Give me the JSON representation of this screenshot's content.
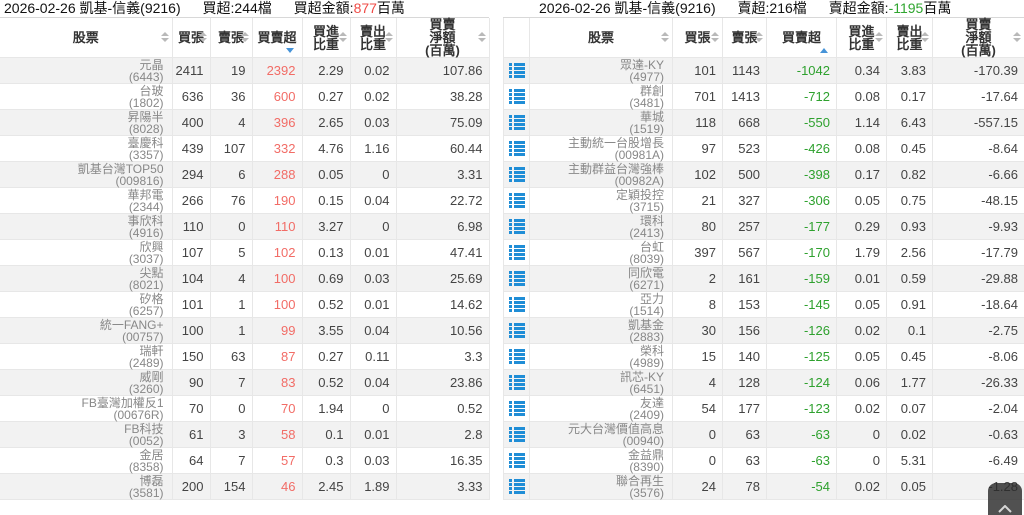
{
  "colors": {
    "positive-red": "#f26c66",
    "negative-green": "#2ea12e",
    "title-red": "#ef4b46",
    "title-green": "#2fa52f",
    "icon-blue": "#1f8dd6",
    "sort-blue": "#4693d8"
  },
  "tables": [
    {
      "kind": "buy-super",
      "has_icon_column": false,
      "title": {
        "date_broker": "2026-02-26 凱基-信義(9216)",
        "count": "買超:244檔",
        "amount_prefix": "買超金額:",
        "amount_value": "877",
        "amount_suffix": "百萬",
        "amount_color": "red"
      },
      "columns": [
        {
          "label": "股票",
          "sort": "none"
        },
        {
          "label": "買張",
          "sort": "none"
        },
        {
          "label": "賣張",
          "sort": "none"
        },
        {
          "label": "買賣超",
          "sort": "desc"
        },
        {
          "label": "買進\n比重",
          "sort": "none"
        },
        {
          "label": "賣出\n比重",
          "sort": "none"
        },
        {
          "label": "買賣\n淨額\n(百萬)",
          "sort": "none"
        }
      ],
      "rows": [
        {
          "name": "元晶",
          "code": "(6443)",
          "cells": [
            "2411",
            "19",
            "2392",
            "2.29",
            "0.02",
            "107.86"
          ]
        },
        {
          "name": "台玻",
          "code": "(1802)",
          "cells": [
            "636",
            "36",
            "600",
            "0.27",
            "0.02",
            "38.28"
          ]
        },
        {
          "name": "昇陽半",
          "code": "(8028)",
          "cells": [
            "400",
            "4",
            "396",
            "2.65",
            "0.03",
            "75.09"
          ]
        },
        {
          "name": "臺慶科",
          "code": "(3357)",
          "cells": [
            "439",
            "107",
            "332",
            "4.76",
            "1.16",
            "60.44"
          ]
        },
        {
          "name": "凱基台灣TOP50",
          "code": "(009816)",
          "cells": [
            "294",
            "6",
            "288",
            "0.05",
            "0",
            "3.31"
          ]
        },
        {
          "name": "華邦電",
          "code": "(2344)",
          "cells": [
            "266",
            "76",
            "190",
            "0.15",
            "0.04",
            "22.72"
          ]
        },
        {
          "name": "事欣科",
          "code": "(4916)",
          "cells": [
            "110",
            "0",
            "110",
            "3.27",
            "0",
            "6.98"
          ]
        },
        {
          "name": "欣興",
          "code": "(3037)",
          "cells": [
            "107",
            "5",
            "102",
            "0.13",
            "0.01",
            "47.41"
          ]
        },
        {
          "name": "尖點",
          "code": "(8021)",
          "cells": [
            "104",
            "4",
            "100",
            "0.69",
            "0.03",
            "25.69"
          ]
        },
        {
          "name": "矽格",
          "code": "(6257)",
          "cells": [
            "101",
            "1",
            "100",
            "0.52",
            "0.01",
            "14.62"
          ]
        },
        {
          "name": "統一FANG+",
          "code": "(00757)",
          "cells": [
            "100",
            "1",
            "99",
            "3.55",
            "0.04",
            "10.56"
          ]
        },
        {
          "name": "瑞軒",
          "code": "(2489)",
          "cells": [
            "150",
            "63",
            "87",
            "0.27",
            "0.11",
            "3.3"
          ]
        },
        {
          "name": "威剛",
          "code": "(3260)",
          "cells": [
            "90",
            "7",
            "83",
            "0.52",
            "0.04",
            "23.86"
          ]
        },
        {
          "name": "FB臺灣加權反1",
          "code": "(00676R)",
          "cells": [
            "70",
            "0",
            "70",
            "1.94",
            "0",
            "0.52"
          ]
        },
        {
          "name": "FB科技",
          "code": "(0052)",
          "cells": [
            "61",
            "3",
            "58",
            "0.1",
            "0.01",
            "2.8"
          ]
        },
        {
          "name": "金居",
          "code": "(8358)",
          "cells": [
            "64",
            "7",
            "57",
            "0.3",
            "0.03",
            "16.35"
          ]
        },
        {
          "name": "博磊",
          "code": "(3581)",
          "cells": [
            "200",
            "154",
            "46",
            "2.45",
            "1.89",
            "3.33"
          ]
        }
      ]
    },
    {
      "kind": "sell-super",
      "has_icon_column": true,
      "title": {
        "date_broker": "2026-02-26 凱基-信義(9216)",
        "count": "賣超:216檔",
        "amount_prefix": "賣超金額:",
        "amount_value": "-1195",
        "amount_suffix": "百萬",
        "amount_color": "green"
      },
      "columns": [
        {
          "label": "股票",
          "sort": "none"
        },
        {
          "label": "買張",
          "sort": "none"
        },
        {
          "label": "賣張",
          "sort": "none"
        },
        {
          "label": "買賣超",
          "sort": "asc"
        },
        {
          "label": "買進\n比重",
          "sort": "none"
        },
        {
          "label": "賣出\n比重",
          "sort": "none"
        },
        {
          "label": "買賣\n淨額\n(百萬)",
          "sort": "none"
        }
      ],
      "rows": [
        {
          "name": "眾達-KY",
          "code": "(4977)",
          "cells": [
            "101",
            "1143",
            "-1042",
            "0.34",
            "3.83",
            "-170.39"
          ]
        },
        {
          "name": "群創",
          "code": "(3481)",
          "cells": [
            "701",
            "1413",
            "-712",
            "0.08",
            "0.17",
            "-17.64"
          ]
        },
        {
          "name": "華城",
          "code": "(1519)",
          "cells": [
            "118",
            "668",
            "-550",
            "1.14",
            "6.43",
            "-557.15"
          ]
        },
        {
          "name": "主動統一台股增長",
          "code": "(00981A)",
          "cells": [
            "97",
            "523",
            "-426",
            "0.08",
            "0.45",
            "-8.64"
          ]
        },
        {
          "name": "主動群益台灣強棒",
          "code": "(00982A)",
          "cells": [
            "102",
            "500",
            "-398",
            "0.17",
            "0.82",
            "-6.66"
          ]
        },
        {
          "name": "定穎投控",
          "code": "(3715)",
          "cells": [
            "21",
            "327",
            "-306",
            "0.05",
            "0.75",
            "-48.15"
          ]
        },
        {
          "name": "環科",
          "code": "(2413)",
          "cells": [
            "80",
            "257",
            "-177",
            "0.29",
            "0.93",
            "-9.93"
          ]
        },
        {
          "name": "台虹",
          "code": "(8039)",
          "cells": [
            "397",
            "567",
            "-170",
            "1.79",
            "2.56",
            "-17.79"
          ]
        },
        {
          "name": "同欣電",
          "code": "(6271)",
          "cells": [
            "2",
            "161",
            "-159",
            "0.01",
            "0.59",
            "-29.88"
          ]
        },
        {
          "name": "亞力",
          "code": "(1514)",
          "cells": [
            "8",
            "153",
            "-145",
            "0.05",
            "0.91",
            "-18.64"
          ]
        },
        {
          "name": "凱基金",
          "code": "(2883)",
          "cells": [
            "30",
            "156",
            "-126",
            "0.02",
            "0.1",
            "-2.75"
          ]
        },
        {
          "name": "榮科",
          "code": "(4989)",
          "cells": [
            "15",
            "140",
            "-125",
            "0.05",
            "0.45",
            "-8.06"
          ]
        },
        {
          "name": "訊芯-KY",
          "code": "(6451)",
          "cells": [
            "4",
            "128",
            "-124",
            "0.06",
            "1.77",
            "-26.33"
          ]
        },
        {
          "name": "友達",
          "code": "(2409)",
          "cells": [
            "54",
            "177",
            "-123",
            "0.02",
            "0.07",
            "-2.04"
          ]
        },
        {
          "name": "元大台灣價值高息",
          "code": "(00940)",
          "cells": [
            "0",
            "63",
            "-63",
            "0",
            "0.02",
            "-0.63"
          ]
        },
        {
          "name": "金益鼎",
          "code": "(8390)",
          "cells": [
            "0",
            "63",
            "-63",
            "0",
            "5.31",
            "-6.49"
          ]
        },
        {
          "name": "聯合再生",
          "code": "(3576)",
          "cells": [
            "24",
            "78",
            "-54",
            "0.02",
            "0.05",
            "-1.28"
          ]
        }
      ]
    }
  ],
  "scroll_top": {
    "icon": "chevron-up-icon"
  }
}
